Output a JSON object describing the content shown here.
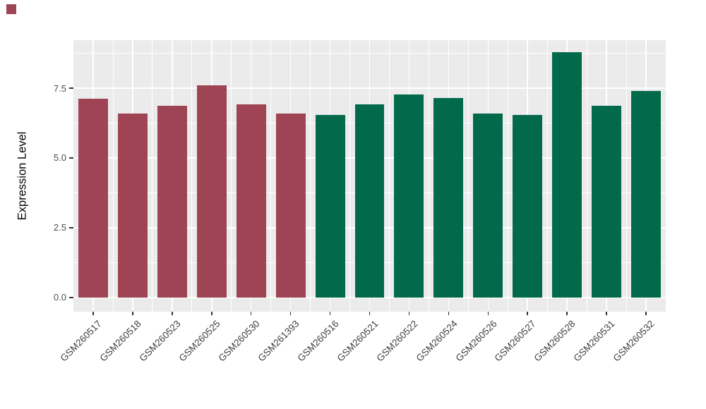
{
  "chart_data": {
    "type": "bar",
    "title": "",
    "xlabel": "",
    "ylabel": "Expression Level",
    "categories": [
      "GSM260517",
      "GSM260518",
      "GSM260523",
      "GSM260525",
      "GSM260530",
      "GSM261393",
      "GSM260516",
      "GSM260521",
      "GSM260522",
      "GSM260524",
      "GSM260526",
      "GSM260527",
      "GSM260528",
      "GSM260531",
      "GSM260532"
    ],
    "values": [
      7.13,
      6.58,
      6.86,
      7.61,
      6.93,
      6.6,
      6.55,
      6.93,
      7.28,
      7.16,
      6.58,
      6.55,
      8.8,
      6.86,
      7.39
    ],
    "groups": [
      "group1",
      "group1",
      "group1",
      "group1",
      "group1",
      "group1",
      "group2",
      "group2",
      "group2",
      "group2",
      "group2",
      "group2",
      "group2",
      "group2",
      "group2"
    ],
    "group_colors": {
      "group1": "#9E4454",
      "group2": "#026A4B"
    },
    "ytick_labels": [
      "0.0",
      "2.5",
      "5.0",
      "7.5"
    ],
    "ytick_values": [
      0,
      2.5,
      5.0,
      7.5
    ],
    "minor_tick_values": [
      1.25,
      3.75,
      6.25,
      8.75
    ],
    "ylim": [
      -0.51,
      9.22
    ],
    "bar_width_ratio": 0.75,
    "grid": true,
    "legend_position": "none",
    "panel_bg": "#EBEBEB",
    "gridline_color": "#FFFFFF",
    "tick_label_color": "#4D4D4D",
    "axis_title_color": "#000000"
  },
  "corner_marker": {
    "color": "#9E4454"
  }
}
